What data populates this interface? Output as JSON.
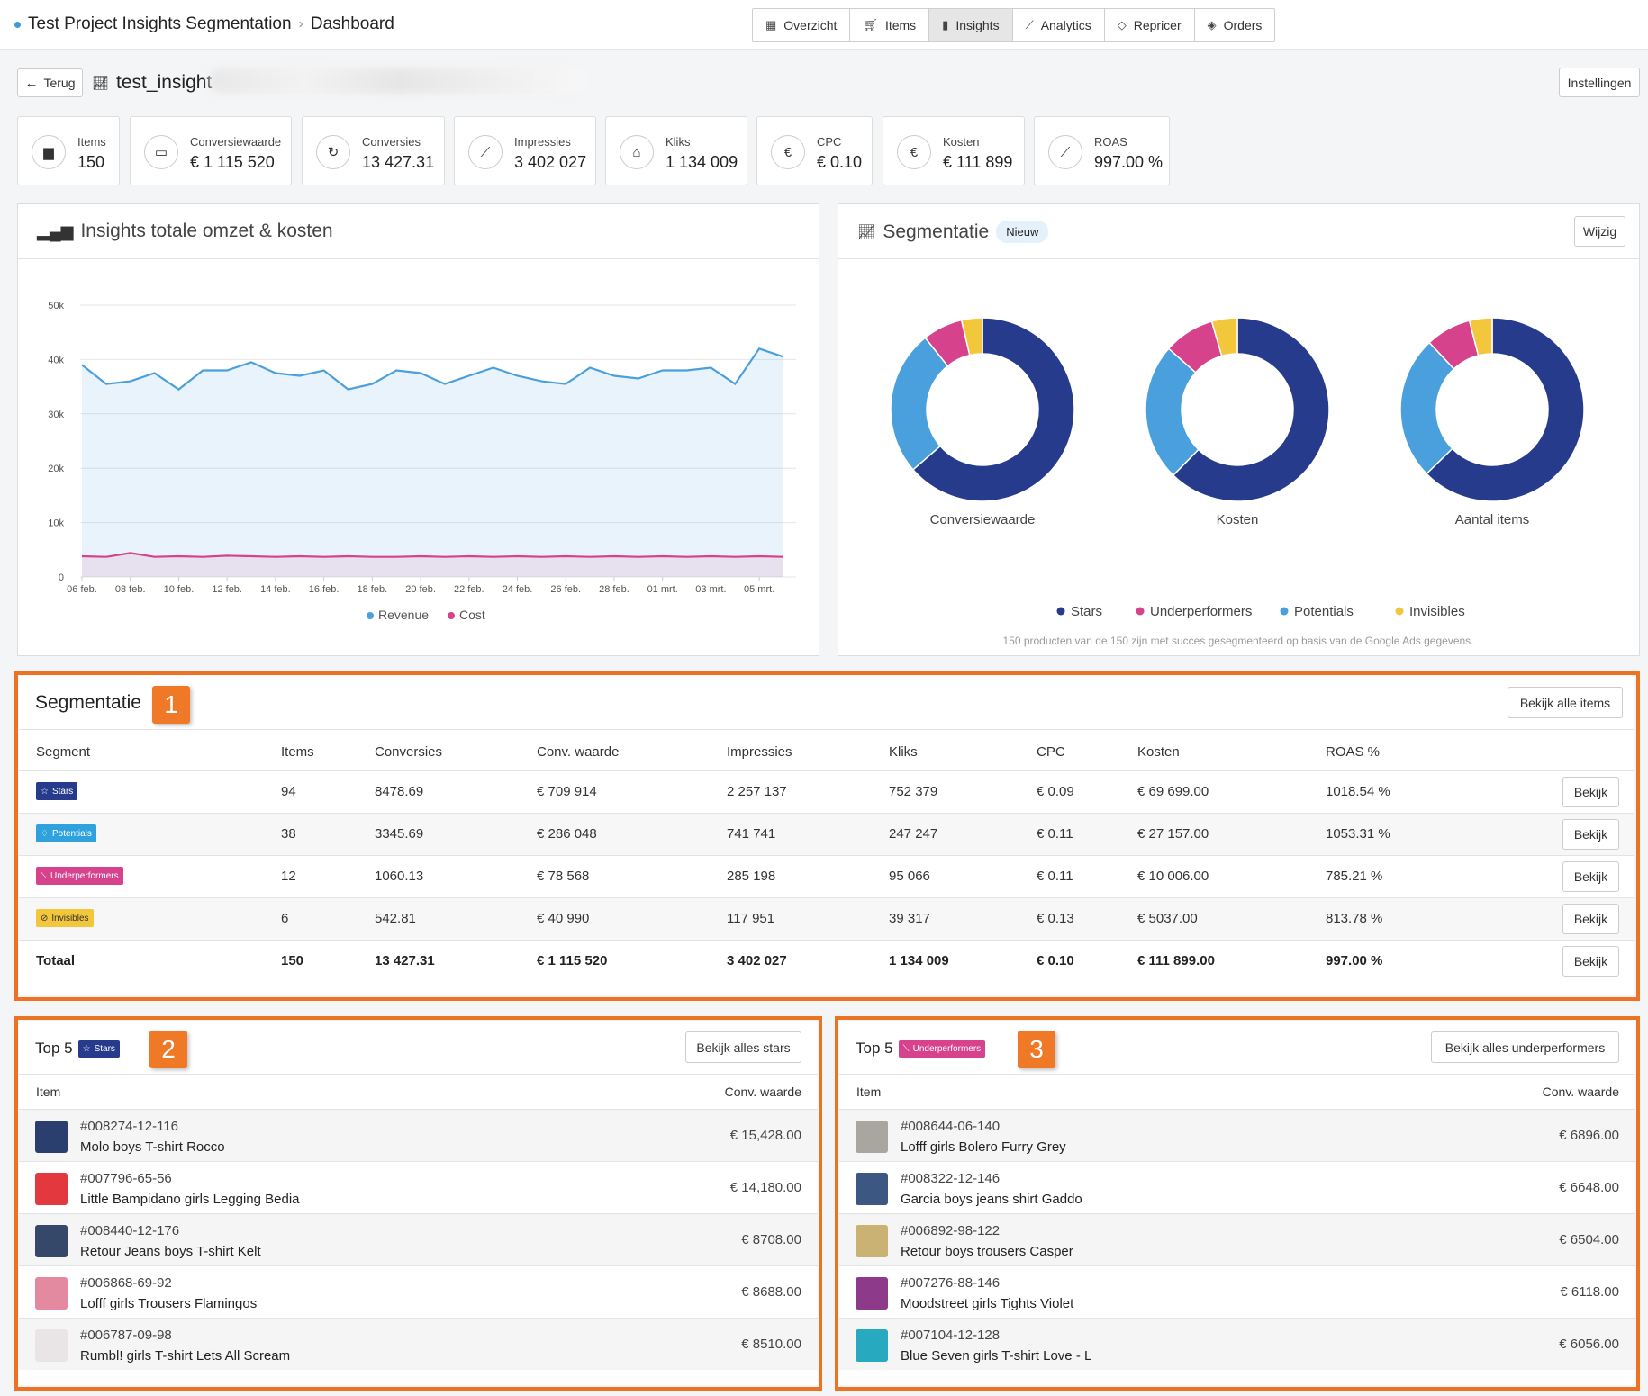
{
  "breadcrumb": {
    "project": "Test Project Insights Segmentation",
    "page": "Dashboard"
  },
  "nav": [
    {
      "label": "Overzicht",
      "icon": "chart-board-icon"
    },
    {
      "label": "Items",
      "icon": "cart-icon"
    },
    {
      "label": "Insights",
      "icon": "bar-chart-icon",
      "active": true
    },
    {
      "label": "Analytics",
      "icon": "trend-line-icon"
    },
    {
      "label": "Repricer",
      "icon": "tag-icon"
    },
    {
      "label": "Orders",
      "icon": "box-icon"
    }
  ],
  "header": {
    "back_label": "Terug",
    "title": "test_insight",
    "settings_label": "Instellingen"
  },
  "kpis": [
    {
      "label": "Items",
      "value": "150",
      "icon": "box-icon"
    },
    {
      "label": "Conversiewaarde",
      "value": "€ 1 115 520",
      "icon": "money-icon"
    },
    {
      "label": "Conversies",
      "value": "13 427.31",
      "icon": "refresh-icon"
    },
    {
      "label": "Impressies",
      "value": "3 402 027",
      "icon": "chart-line-icon"
    },
    {
      "label": "Kliks",
      "value": "1 134 009",
      "icon": "mouse-icon"
    },
    {
      "label": "CPC",
      "value": "€ 0.10",
      "icon": "euro-icon"
    },
    {
      "label": "Kosten",
      "value": "€ 111 899",
      "icon": "euro-icon"
    },
    {
      "label": "ROAS",
      "value": "997.00 %",
      "icon": "chart-line-icon"
    }
  ],
  "revenue_panel": {
    "title": "Insights totale omzet & kosten"
  },
  "seg_panel": {
    "title": "Segmentatie",
    "badge": "Nieuw",
    "edit_label": "Wijzig",
    "legend": [
      "Stars",
      "Underperformers",
      "Potentials",
      "Invisibles"
    ],
    "note": "150 producten van de 150 zijn met succes gesegmenteerd op basis van de Google Ads gegevens."
  },
  "colors": {
    "stars": "#263b8b",
    "potentials": "#4aa0dc",
    "underperformers": "#d6428c",
    "invisibles": "#f3c73c",
    "revenue": "#4aa0dc",
    "cost": "#d6428c",
    "accent": "#ec7224"
  },
  "chart_data": [
    {
      "type": "area",
      "x": [
        "06 feb.",
        "07 feb.",
        "08 feb.",
        "09 feb.",
        "10 feb.",
        "11 feb.",
        "12 feb.",
        "13 feb.",
        "14 feb.",
        "15 feb.",
        "16 feb.",
        "17 feb.",
        "18 feb.",
        "19 feb.",
        "20 feb.",
        "21 feb.",
        "22 feb.",
        "23 feb.",
        "24 feb.",
        "25 feb.",
        "26 feb.",
        "27 feb.",
        "28 feb.",
        "29 feb.",
        "01 mrt.",
        "02 mrt.",
        "03 mrt.",
        "04 mrt.",
        "05 mrt.",
        "06 mrt."
      ],
      "xticks": [
        "06 feb.",
        "08 feb.",
        "10 feb.",
        "12 feb.",
        "14 feb.",
        "16 feb.",
        "18 feb.",
        "20 feb.",
        "22 feb.",
        "24 feb.",
        "26 feb.",
        "28 feb.",
        "01 mrt.",
        "03 mrt.",
        "05 mrt."
      ],
      "yticks": [
        "0",
        "10k",
        "20k",
        "30k",
        "40k",
        "50k"
      ],
      "ylim": [
        0,
        50000
      ],
      "series": [
        {
          "name": "Revenue",
          "values": [
            39000,
            35500,
            36000,
            37500,
            34500,
            38000,
            38000,
            39500,
            37500,
            37000,
            38000,
            34500,
            35500,
            38000,
            37500,
            35500,
            37000,
            38500,
            37000,
            36000,
            35500,
            38500,
            37000,
            36500,
            38000,
            38000,
            38500,
            35500,
            42000,
            40500
          ]
        },
        {
          "name": "Cost",
          "values": [
            3800,
            3700,
            4400,
            3700,
            3800,
            3700,
            3900,
            3800,
            3700,
            3800,
            3700,
            3800,
            3700,
            3700,
            3800,
            3700,
            3800,
            3700,
            3800,
            3700,
            3800,
            3700,
            3800,
            3700,
            3800,
            3700,
            3800,
            3700,
            3800,
            3700
          ]
        }
      ]
    },
    {
      "type": "pie",
      "title": "Conversiewaarde",
      "categories": [
        "Stars",
        "Potentials",
        "Underperformers",
        "Invisibles"
      ],
      "values": [
        709914,
        286048,
        78568,
        40990
      ]
    },
    {
      "type": "pie",
      "title": "Kosten",
      "categories": [
        "Stars",
        "Potentials",
        "Underperformers",
        "Invisibles"
      ],
      "values": [
        69699,
        27157,
        10006,
        5037
      ]
    },
    {
      "type": "pie",
      "title": "Aantal items",
      "categories": [
        "Stars",
        "Potentials",
        "Underperformers",
        "Invisibles"
      ],
      "values": [
        94,
        38,
        12,
        6
      ]
    }
  ],
  "segtable": {
    "title": "Segmentatie",
    "marker": "1",
    "all_label": "Bekijk alle items",
    "headers": [
      "Segment",
      "Items",
      "Conversies",
      "Conv. waarde",
      "Impressies",
      "Kliks",
      "CPC",
      "Kosten",
      "ROAS %"
    ],
    "rows": [
      {
        "segment": "Stars",
        "icon": "star-icon",
        "color": "#263b8b",
        "cells": [
          "94",
          "8478.69",
          "€ 709 914",
          "2 257 137",
          "752 379",
          "€ 0.09",
          "€ 69 699.00",
          "1018.54 %"
        ]
      },
      {
        "segment": "Potentials",
        "icon": "bulb-icon",
        "color": "#2fa2dd",
        "cells": [
          "38",
          "3345.69",
          "€ 286 048",
          "741 741",
          "247 247",
          "€ 0.11",
          "€ 27 157.00",
          "1053.31 %"
        ]
      },
      {
        "segment": "Underperformers",
        "icon": "chart-down-icon",
        "color": "#d6428c",
        "cells": [
          "12",
          "1060.13",
          "€ 78 568",
          "285 198",
          "95 066",
          "€ 0.11",
          "€ 10 006.00",
          "785.21 %"
        ]
      },
      {
        "segment": "Invisibles",
        "icon": "eye-slash-icon",
        "color": "#f3c73c",
        "cells": [
          "6",
          "542.81",
          "€ 40 990",
          "117 951",
          "39 317",
          "€ 0.13",
          "€ 5037.00",
          "813.78 %"
        ]
      }
    ],
    "total": {
      "label": "Totaal",
      "cells": [
        "150",
        "13 427.31",
        "€ 1 115 520",
        "3 402 027",
        "1 134 009",
        "€ 0.10",
        "€ 111 899.00",
        "997.00 %"
      ]
    },
    "row_button": "Bekijk"
  },
  "top_stars": {
    "title": "Top 5",
    "pill": "Stars",
    "marker": "2",
    "button": "Bekijk alles stars",
    "col_item": "Item",
    "col_value": "Conv. waarde",
    "items": [
      {
        "sku": "#008274-12-116",
        "name": "Molo boys T-shirt Rocco",
        "value": "€ 15,428.00",
        "thumb": "#2a3f6e"
      },
      {
        "sku": "#007796-65-56",
        "name": "Little Bampidano girls Legging Bedia",
        "value": "€ 14,180.00",
        "thumb": "#e3383d"
      },
      {
        "sku": "#008440-12-176",
        "name": "Retour Jeans boys T-shirt Kelt",
        "value": "€ 8708.00",
        "thumb": "#36486a"
      },
      {
        "sku": "#006868-69-92",
        "name": "Lofff girls Trousers Flamingos",
        "value": "€ 8688.00",
        "thumb": "#e48aa0"
      },
      {
        "sku": "#006787-09-98",
        "name": "Rumbl! girls T-shirt Lets All Scream",
        "value": "€ 8510.00",
        "thumb": "#e9e4e6"
      }
    ]
  },
  "top_under": {
    "title": "Top 5",
    "pill": "Underperformers",
    "marker": "3",
    "button": "Bekijk alles underperformers",
    "col_item": "Item",
    "col_value": "Conv. waarde",
    "items": [
      {
        "sku": "#008644-06-140",
        "name": "Lofff girls Bolero Furry Grey",
        "value": "€ 6896.00",
        "thumb": "#a9a6a0"
      },
      {
        "sku": "#008322-12-146",
        "name": "Garcia boys jeans shirt Gaddo",
        "value": "€ 6648.00",
        "thumb": "#3c5782"
      },
      {
        "sku": "#006892-98-122",
        "name": "Retour boys trousers Casper",
        "value": "€ 6504.00",
        "thumb": "#c9b274"
      },
      {
        "sku": "#007276-88-146",
        "name": "Moodstreet girls Tights Violet",
        "value": "€ 6118.00",
        "thumb": "#8e3a8a"
      },
      {
        "sku": "#007104-12-128",
        "name": "Blue Seven girls T-shirt Love - L",
        "value": "€ 6056.00",
        "thumb": "#27a9c0"
      }
    ]
  }
}
